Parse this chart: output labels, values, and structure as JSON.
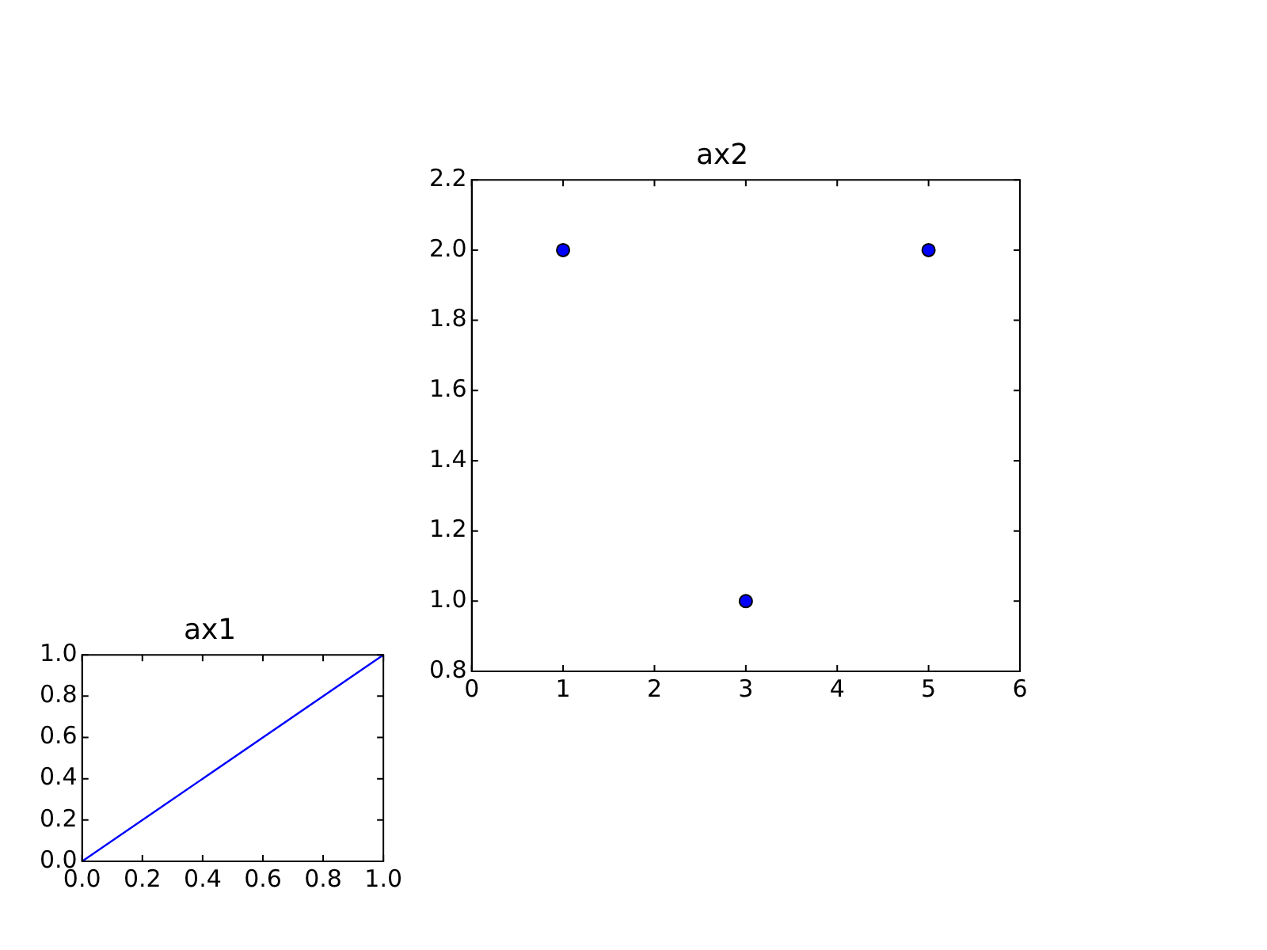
{
  "chart_data": [
    {
      "type": "line",
      "title": "ax1",
      "x": [
        0,
        1
      ],
      "values": [
        0,
        1
      ],
      "color": "#0000ff",
      "marker": "none",
      "line_style": "solid",
      "xlim": [
        0,
        1
      ],
      "ylim": [
        0,
        1
      ],
      "xticks": [
        {
          "value": 0,
          "label": "0.0"
        },
        {
          "value": 0.2,
          "label": "0.2"
        },
        {
          "value": 0.4,
          "label": "0.4"
        },
        {
          "value": 0.6,
          "label": "0.6"
        },
        {
          "value": 0.8,
          "label": "0.8"
        },
        {
          "value": 1,
          "label": "1.0"
        }
      ],
      "yticks": [
        {
          "value": 0,
          "label": "0.0"
        },
        {
          "value": 0.2,
          "label": "0.2"
        },
        {
          "value": 0.4,
          "label": "0.4"
        },
        {
          "value": 0.6,
          "label": "0.6"
        },
        {
          "value": 0.8,
          "label": "0.8"
        },
        {
          "value": 1,
          "label": "1.0"
        }
      ]
    },
    {
      "type": "scatter",
      "title": "ax2",
      "x": [
        1,
        3,
        5
      ],
      "values": [
        2,
        1,
        2
      ],
      "color": "#0000ff",
      "marker": "circle",
      "xlim": [
        0,
        6
      ],
      "ylim": [
        0.8,
        2.2
      ],
      "xticks": [
        0,
        1,
        2,
        3,
        4,
        5,
        6
      ],
      "yticks": [
        {
          "value": 0.8,
          "label": "0.8"
        },
        {
          "value": 1,
          "label": "1.0"
        },
        {
          "value": 1.2,
          "label": "1.2"
        },
        {
          "value": 1.4,
          "label": "1.4"
        },
        {
          "value": 1.6,
          "label": "1.6"
        },
        {
          "value": 1.8,
          "label": "1.8"
        },
        {
          "value": 2,
          "label": "2.0"
        },
        {
          "value": 2.2,
          "label": "2.2"
        }
      ]
    }
  ]
}
